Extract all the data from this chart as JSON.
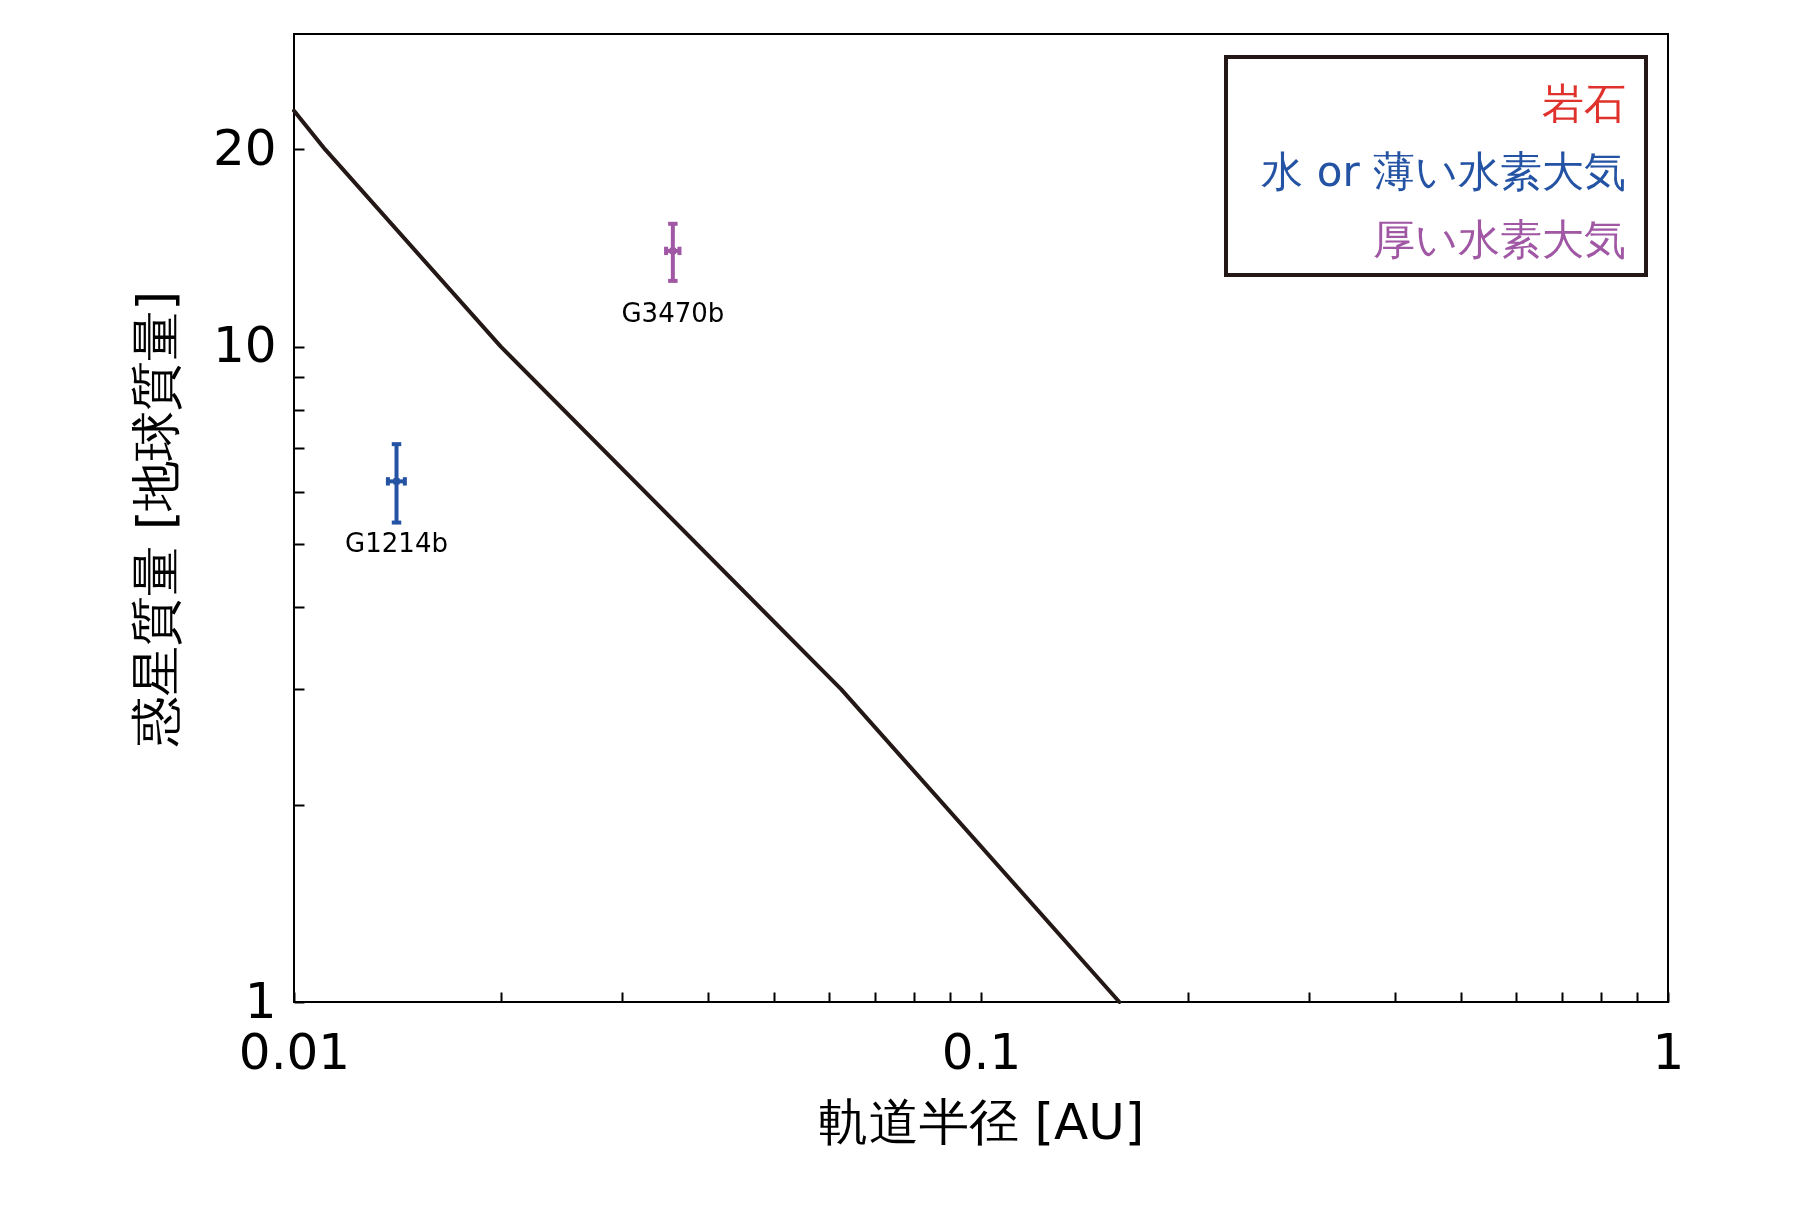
{
  "chart_data": {
    "type": "scatter",
    "xlabel": "軌道半径 [AU]",
    "ylabel": "惑星質量 [地球質量]",
    "log": "xy",
    "xlim": [
      0.01,
      1
    ],
    "ylim": [
      1,
      30
    ],
    "xticks": [
      0.01,
      {
        "value": 0.02,
        "label": null
      },
      {
        "value": 0.03,
        "label": null
      },
      {
        "value": 0.04,
        "label": null
      },
      {
        "value": 0.05,
        "label": null
      },
      {
        "value": 0.06,
        "label": null
      },
      {
        "value": 0.07,
        "label": null
      },
      {
        "value": 0.08,
        "label": null
      },
      {
        "value": 0.09,
        "label": null
      },
      0.1,
      {
        "value": 0.2,
        "label": null
      },
      {
        "value": 0.3,
        "label": null
      },
      {
        "value": 0.4,
        "label": null
      },
      {
        "value": 0.5,
        "label": null
      },
      {
        "value": 0.6,
        "label": null
      },
      {
        "value": 0.7,
        "label": null
      },
      {
        "value": 0.8,
        "label": null
      },
      {
        "value": 0.9,
        "label": null
      },
      1
    ],
    "yticks": [
      1,
      {
        "value": 2,
        "label": null
      },
      {
        "value": 3,
        "label": null
      },
      {
        "value": 4,
        "label": null
      },
      {
        "value": 5,
        "label": null
      },
      {
        "value": 6,
        "label": null
      },
      {
        "value": 7,
        "label": null
      },
      {
        "value": 8,
        "label": null
      },
      {
        "value": 9,
        "label": null
      },
      10,
      20
    ],
    "grid": false,
    "series": [
      {
        "type": "line",
        "color": "#231815",
        "x": [
          0.01,
          0.0111,
          0.02,
          0.0626,
          0.159
        ],
        "values": [
          22.9,
          20,
          10,
          3,
          1
        ]
      },
      {
        "name": "岩石",
        "color": "#e0322c"
      },
      {
        "name": "水 or 薄い水素大気",
        "color": "#2453a4",
        "marker": "square",
        "x": [
          0.0141
        ],
        "values": [
          6.23
        ],
        "errors": [
          [
            5.39,
            7.1
          ]
        ],
        "xerrors": [
          [
            0.0137,
            0.0145
          ]
        ]
      },
      {
        "name": "厚い水素大気",
        "color": "#a057a4",
        "marker": "square",
        "x": [
          0.0356
        ],
        "values": [
          14
        ],
        "errors": [
          [
            12.6,
            15.4
          ]
        ],
        "xerrors": [
          [
            0.0348,
            0.0364
          ]
        ]
      }
    ],
    "annotations": [
      {
        "text": "G1214b",
        "x": 0.0141,
        "y": 6.23
      },
      {
        "text": "G3470b",
        "x": 0.0356,
        "y": 14
      }
    ]
  }
}
